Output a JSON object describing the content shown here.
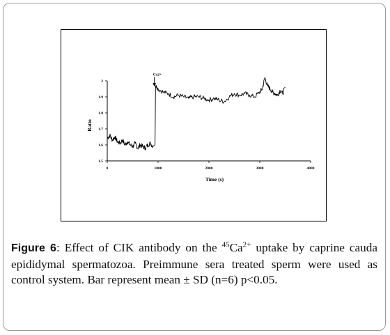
{
  "chart_data": {
    "type": "line",
    "title": "",
    "xlabel": "Time (s)",
    "ylabel": "Ratio",
    "xlim": [
      0,
      4000
    ],
    "ylim": [
      1.5,
      2.0
    ],
    "x_ticks": [
      "0",
      "1000",
      "2000",
      "3000",
      "4000"
    ],
    "y_ticks": [
      "1.5",
      "1.6",
      "1.7",
      "1.8",
      "1.9",
      "2"
    ],
    "annotation": {
      "label": "Ca2+",
      "x": 900,
      "y": 1.99
    },
    "series": [
      {
        "x": [
          0,
          50,
          100,
          150,
          200,
          250,
          300,
          350,
          400,
          450,
          500,
          550,
          600,
          650,
          700,
          750,
          800,
          850,
          900,
          940,
          950,
          1000,
          1100,
          1200,
          1300,
          1400,
          1500,
          1600,
          1700,
          1800,
          1900,
          2000,
          2100,
          2200,
          2300,
          2400,
          2500,
          2600,
          2700,
          2800,
          2900,
          3000,
          3050,
          3100,
          3150,
          3200,
          3250,
          3300,
          3350,
          3400,
          3450,
          3500
        ],
        "y": [
          1.64,
          1.66,
          1.63,
          1.65,
          1.62,
          1.61,
          1.63,
          1.6,
          1.62,
          1.6,
          1.59,
          1.61,
          1.58,
          1.6,
          1.59,
          1.58,
          1.6,
          1.61,
          1.59,
          1.6,
          1.97,
          1.95,
          1.93,
          1.92,
          1.9,
          1.91,
          1.9,
          1.89,
          1.9,
          1.9,
          1.89,
          1.88,
          1.89,
          1.88,
          1.87,
          1.9,
          1.92,
          1.91,
          1.92,
          1.91,
          1.9,
          1.93,
          1.95,
          2.02,
          1.97,
          1.95,
          1.93,
          1.92,
          1.91,
          1.94,
          1.92,
          1.96
        ]
      }
    ]
  },
  "caption": {
    "label": "Figure 6",
    "before_sup1": ": Effect of CIK antibody on the ",
    "sup1": "45",
    "mid": "Ca",
    "sup2": "2+",
    "after": " uptake by caprine cauda epididymal spermatozoa. Preimmune sera treated sperm were used as control system. Bar represent mean ± SD (n=6) p<0.05."
  }
}
